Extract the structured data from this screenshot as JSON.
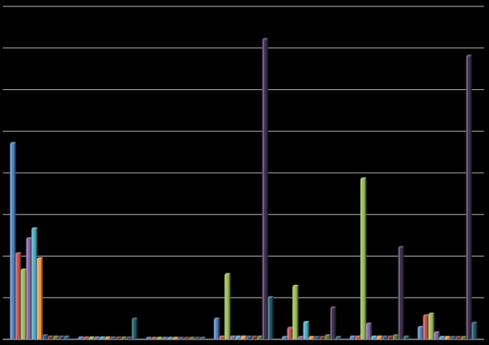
{
  "chart_data": {
    "type": "bar",
    "style": "3d-clustered-columns",
    "background": "#000000",
    "grid": true,
    "gridline_color": "#d9d9d9",
    "gridline_count": 8,
    "ylim": [
      0,
      8
    ],
    "title": "",
    "xlabel": "",
    "ylabel": "",
    "legend": "none",
    "categories": [
      "",
      "",
      "",
      "",
      "",
      "",
      ""
    ],
    "series": [
      {
        "color": "#4f81bd",
        "values": [
          4.7,
          0.03,
          0.02,
          0.48,
          0.04,
          0.05,
          0.28
        ]
      },
      {
        "color": "#c0504d",
        "values": [
          2.05,
          0.03,
          0.02,
          0.05,
          0.26,
          0.05,
          0.56
        ]
      },
      {
        "color": "#9bbb59",
        "values": [
          1.66,
          0.03,
          0.02,
          1.55,
          1.27,
          3.85,
          0.6
        ]
      },
      {
        "color": "#8064a2",
        "values": [
          2.41,
          0.03,
          0.02,
          0.05,
          0.04,
          0.36,
          0.15
        ]
      },
      {
        "color": "#4bacc6",
        "values": [
          2.65,
          0.03,
          0.02,
          0.05,
          0.4,
          0.05,
          0.04
        ]
      },
      {
        "color": "#f79646",
        "values": [
          1.93,
          0.03,
          0.02,
          0.05,
          0.04,
          0.05,
          0.04
        ]
      },
      {
        "color": "#2c4d75",
        "values": [
          0.08,
          0.03,
          0.02,
          0.05,
          0.04,
          0.05,
          0.04
        ]
      },
      {
        "color": "#772c2a",
        "values": [
          0.05,
          0.03,
          0.02,
          0.05,
          0.04,
          0.05,
          0.04
        ]
      },
      {
        "color": "#5f7530",
        "values": [
          0.05,
          0.03,
          0.02,
          0.05,
          0.08,
          0.08,
          0.04
        ]
      },
      {
        "color": "#403152",
        "values": [
          0.05,
          0.03,
          0.02,
          7.2,
          0.75,
          2.2,
          6.8
        ]
      },
      {
        "color": "#215968",
        "values": [
          0.05,
          0.48,
          0.02,
          1.0,
          0.04,
          0.05,
          0.38
        ]
      }
    ]
  }
}
